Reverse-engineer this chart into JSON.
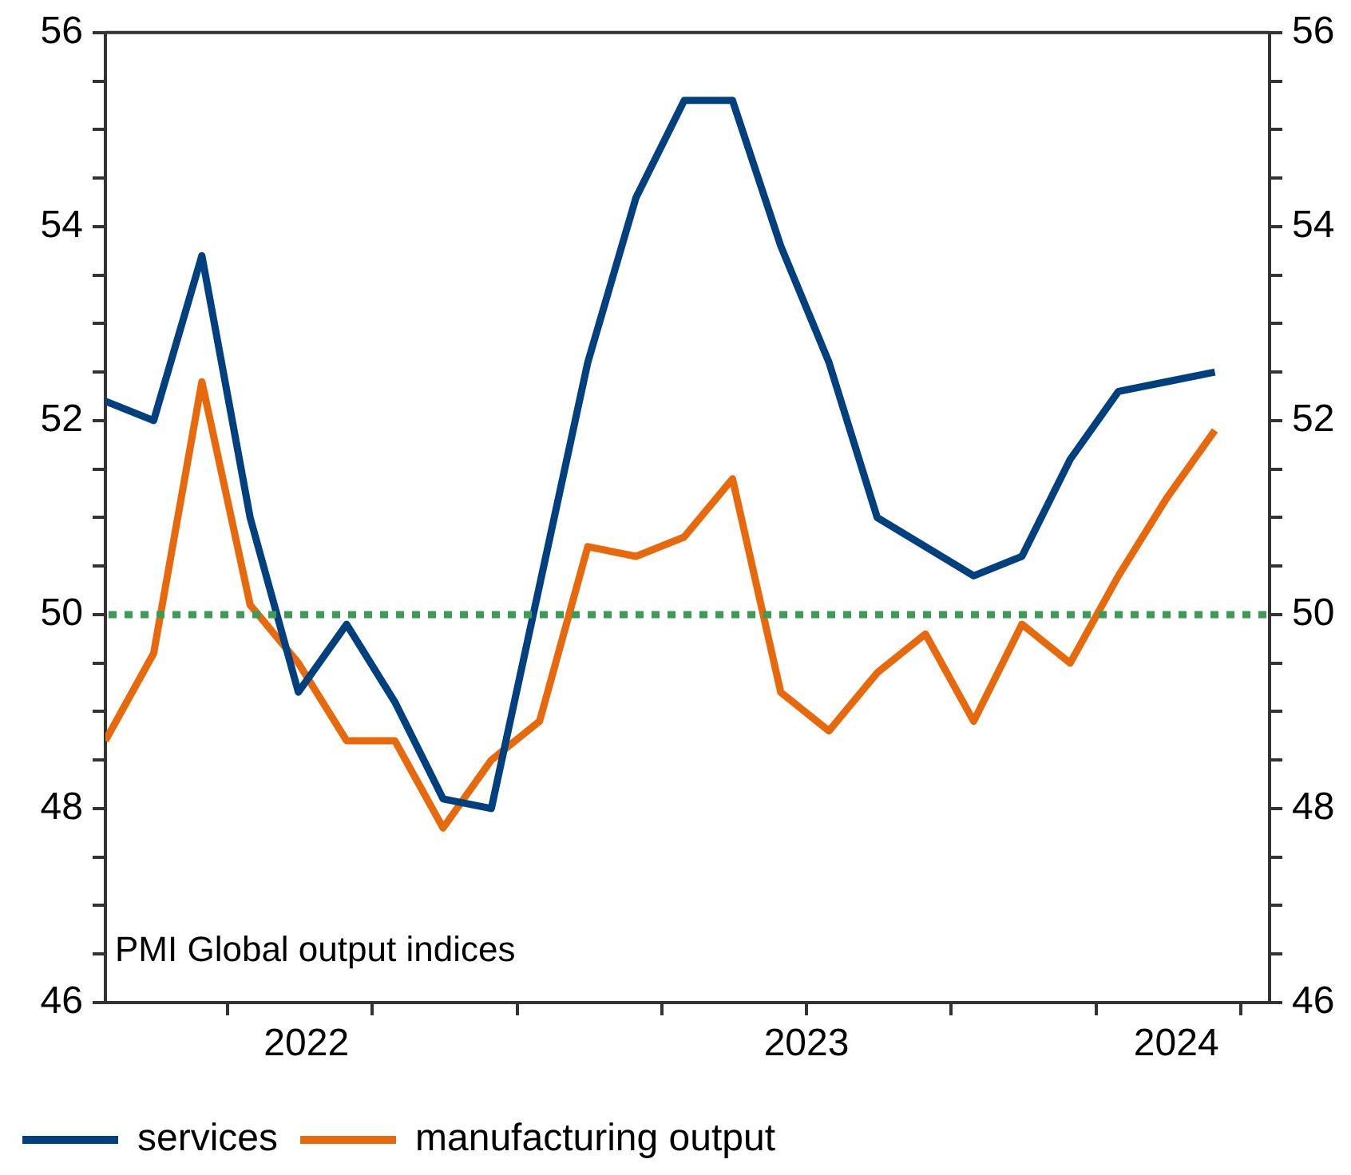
{
  "chart_data": {
    "type": "line",
    "x": [
      "2022-04-15",
      "2022-05-15",
      "2022-06-15",
      "2022-07-15",
      "2022-08-15",
      "2022-09-15",
      "2022-10-15",
      "2022-11-15",
      "2022-12-15",
      "2023-01-15",
      "2023-02-15",
      "2023-03-15",
      "2023-04-15",
      "2023-05-15",
      "2023-06-15",
      "2023-07-15",
      "2023-08-15",
      "2023-09-15",
      "2023-10-15",
      "2023-11-15",
      "2023-12-15",
      "2024-01-15",
      "2024-02-15",
      "2024-03-15"
    ],
    "series": [
      {
        "name": "services",
        "color": "#00407f",
        "values": [
          52.2,
          52.0,
          53.7,
          51.0,
          49.2,
          49.9,
          49.1,
          48.1,
          48.0,
          50.3,
          52.6,
          54.3,
          55.3,
          55.3,
          53.8,
          52.6,
          51.0,
          50.7,
          50.4,
          50.6,
          51.6,
          52.3,
          52.4,
          52.5
        ]
      },
      {
        "name": "manufacturing output",
        "color": "#e8690b",
        "values": [
          48.7,
          49.6,
          52.4,
          50.1,
          49.5,
          48.7,
          48.7,
          47.8,
          48.5,
          48.9,
          50.7,
          50.6,
          50.8,
          51.4,
          49.2,
          48.8,
          49.4,
          49.8,
          48.9,
          49.9,
          49.5,
          50.4,
          51.2,
          51.9
        ]
      }
    ],
    "xlim": [
      "2022-04-15",
      "2024-04-19"
    ],
    "xticks": [
      {
        "value": "2022-07-01",
        "label": null
      },
      {
        "value": "2022-08-20",
        "label": "2022"
      },
      {
        "value": "2022-10-01",
        "label": null
      },
      {
        "value": "2023-01-01",
        "label": null
      },
      {
        "value": "2023-04-01",
        "label": null
      },
      {
        "value": "2023-07-01",
        "label": "2023"
      },
      {
        "value": "2023-07-01",
        "label": null
      },
      {
        "value": "2023-10-01",
        "label": null
      },
      {
        "value": "2024-01-01",
        "label": null
      },
      {
        "value": "2024-02-21",
        "label": "2024"
      },
      {
        "value": "2024-04-01",
        "label": null
      }
    ],
    "ylim": [
      46,
      56
    ],
    "yticks": [
      46,
      {
        "value": 46.5,
        "label": null
      },
      {
        "value": 47,
        "label": null
      },
      {
        "value": 47.5,
        "label": null
      },
      48,
      {
        "value": 48.5,
        "label": null
      },
      {
        "value": 49,
        "label": null
      },
      {
        "value": 49.5,
        "label": null
      },
      50,
      {
        "value": 50.5,
        "label": null
      },
      {
        "value": 51,
        "label": null
      },
      {
        "value": 51.5,
        "label": null
      },
      52,
      {
        "value": 52.5,
        "label": null
      },
      {
        "value": 53,
        "label": null
      },
      {
        "value": 53.5,
        "label": null
      },
      54,
      {
        "value": 54.5,
        "label": null
      },
      {
        "value": 55,
        "label": null
      },
      {
        "value": 55.5,
        "label": null
      },
      56
    ],
    "y2lim": [
      46,
      56
    ],
    "y2ticks": [
      46,
      {
        "value": 46.5,
        "label": null
      },
      {
        "value": 47,
        "label": null
      },
      {
        "value": 47.5,
        "label": null
      },
      48,
      {
        "value": 48.5,
        "label": null
      },
      {
        "value": 49,
        "label": null
      },
      {
        "value": 49.5,
        "label": null
      },
      50,
      {
        "value": 50.5,
        "label": null
      },
      {
        "value": 51,
        "label": null
      },
      {
        "value": 51.5,
        "label": null
      },
      52,
      {
        "value": 52.5,
        "label": null
      },
      {
        "value": 53,
        "label": null
      },
      {
        "value": 53.5,
        "label": null
      },
      54,
      {
        "value": 54.5,
        "label": null
      },
      {
        "value": 55,
        "label": null
      },
      {
        "value": 55.5,
        "label": null
      },
      56
    ],
    "ref_lines": [
      {
        "axis": "y",
        "value": 50,
        "color": "#3d9b56",
        "line_style": "dotted"
      }
    ],
    "annotations": [
      "PMI Global output indices"
    ],
    "grid": false,
    "legend": "bottom",
    "marker": "none",
    "line_style": "solid"
  }
}
